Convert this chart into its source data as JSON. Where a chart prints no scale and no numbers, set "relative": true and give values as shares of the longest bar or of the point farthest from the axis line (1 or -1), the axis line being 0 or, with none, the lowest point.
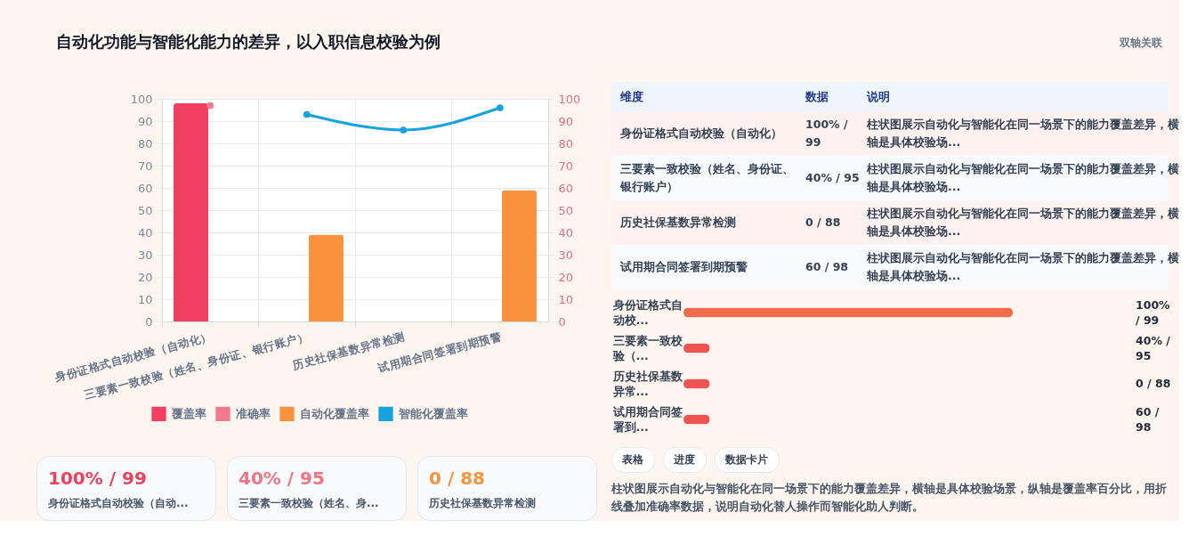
{
  "chart_data": [
    {
      "type": "bar",
      "title": "自动化功能与智能化能力的差异，以入职信息校验为例",
      "annotations": [
        "双轴关联"
      ],
      "categories": [
        "身份证格式自动校验（自动化）",
        "三要素一致校验（姓名、身份证、银行账户）",
        "历史社保基数异常检测",
        "试用期合同签署到期预警"
      ],
      "series": [
        {
          "name": "覆盖率",
          "type": "bar",
          "color": "#f23f5f",
          "values": [
            98,
            null,
            null,
            null
          ]
        },
        {
          "name": "准确率",
          "type": "line",
          "axis": "y2",
          "color": "#f07b90",
          "values": [
            97,
            null,
            null,
            null
          ]
        },
        {
          "name": "自动化覆盖率",
          "type": "bar",
          "color": "#f9923d",
          "values": [
            null,
            39,
            null,
            59
          ]
        },
        {
          "name": "智能化覆盖率",
          "type": "line",
          "axis": "y2",
          "color": "#18a3e0",
          "values": [
            null,
            93,
            86,
            96
          ]
        }
      ],
      "ylim": [
        0,
        100
      ],
      "yticks": [
        0,
        10,
        20,
        30,
        40,
        50,
        60,
        70,
        80,
        90,
        100
      ],
      "y2lim": [
        0,
        100
      ],
      "y2ticks": [
        0,
        10,
        20,
        30,
        40,
        50,
        60,
        70,
        80,
        90,
        100
      ],
      "grid": true,
      "legend": "bottom",
      "marker": "circle"
    },
    {
      "type": "other",
      "annotations": [
        "维度",
        "数据",
        "说明",
        "身份证格式自动校验（自动化）",
        "100% / 99",
        "柱状图展示自动化与智能化在同一场景下的能力覆盖差异，横轴是具体校验场...",
        "三要素一致校验（姓名、身份证、银行账户）",
        "40% / 95",
        "柱状图展示自动化与智能化在同一场景下的能力覆盖差异，横轴是具体校验场...",
        "历史社保基数异常检测",
        "0 / 88",
        "柱状图展示自动化与智能化在同一场景下的能力覆盖差异，横轴是具体校验场...",
        "试用期合同签署到期预警",
        "60 / 98",
        "柱状图展示自动化与智能化在同一场景下的能力覆盖差异，横轴是具体校验场..."
      ]
    },
    {
      "type": "bar",
      "orientation": "horizontal",
      "relative": true,
      "categories": [
        "身份证格式自动校...",
        "三要素一致校验（...",
        "历史社保基数异常...",
        "试用期合同签署到..."
      ],
      "values": [
        1,
        0.08,
        0.08,
        0.08
      ],
      "annotations": [
        "100% / 99",
        "40% / 95",
        "0 / 88",
        "60 / 98"
      ],
      "colors": [
        "#f26b4c",
        "#ee5552",
        "#ee5552",
        "#ee5552"
      ]
    },
    {
      "type": "other",
      "annotations": [
        "100% / 99",
        "身份证格式自动校验（自动...",
        "40% / 95",
        "三要素一致校验（姓名、身...",
        "0 / 88",
        "历史社保基数异常检测"
      ],
      "colors": [
        "#e8435f",
        "#f07585",
        "#f59542"
      ]
    },
    {
      "type": "other",
      "annotations": [
        "表格",
        "进度",
        "数据卡片",
        "柱状图展示自动化与智能化在同一场景下的能力覆盖差异，横轴是具体校验场景，纵轴是覆盖率百分比，用折线叠加准确率数据，说明自动化替人操作而智能化助人判断。"
      ]
    }
  ]
}
